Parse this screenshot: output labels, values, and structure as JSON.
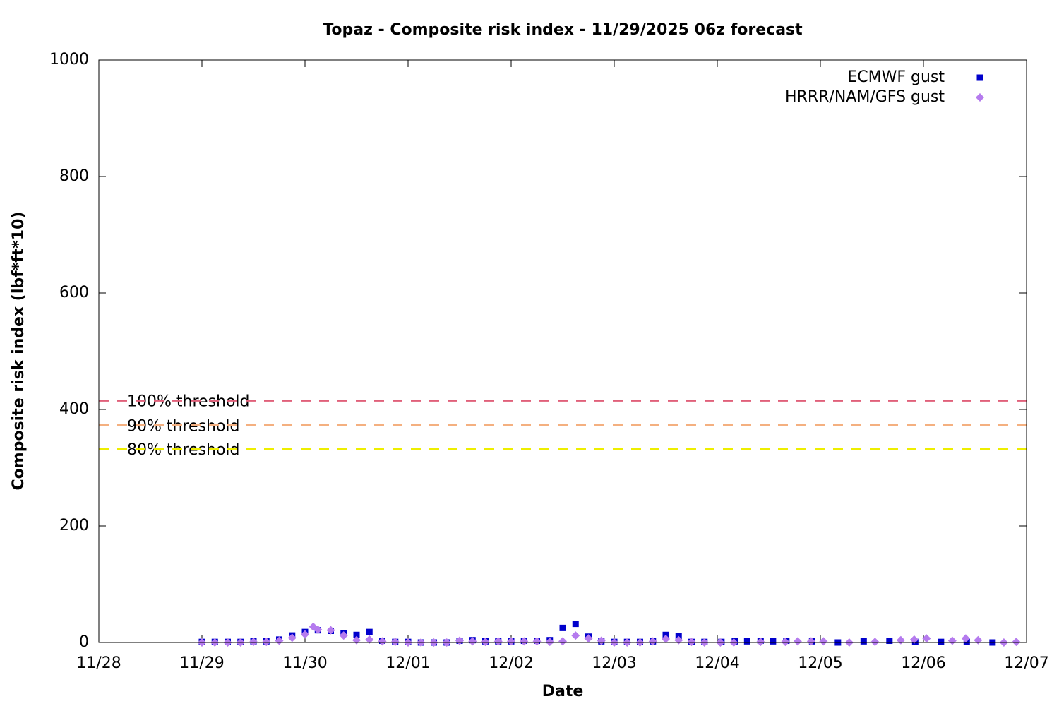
{
  "chart_data": {
    "type": "scatter",
    "title": "Topaz - Composite risk index - 11/29/2025 06z forecast",
    "x_label": "Date",
    "y_label": "Composite risk index (lbf*ft*10)",
    "xlim": [
      0,
      9
    ],
    "xticks": [
      {
        "value": 0,
        "label": "11/28"
      },
      {
        "value": 1,
        "label": "11/29"
      },
      {
        "value": 2,
        "label": "11/30"
      },
      {
        "value": 3,
        "label": "12/01"
      },
      {
        "value": 4,
        "label": "12/02"
      },
      {
        "value": 5,
        "label": "12/03"
      },
      {
        "value": 6,
        "label": "12/04"
      },
      {
        "value": 7,
        "label": "12/05"
      },
      {
        "value": 8,
        "label": "12/06"
      },
      {
        "value": 9,
        "label": "12/07"
      }
    ],
    "ylim": [
      0,
      1000
    ],
    "yticks": [
      0,
      200,
      400,
      600,
      800,
      1000
    ],
    "legend": "top-right",
    "thresholds": [
      {
        "label": "100% threshold",
        "value": 415,
        "color": "#e0607a"
      },
      {
        "label": "90% threshold",
        "value": 373,
        "color": "#f4b080"
      },
      {
        "label": "80% threshold",
        "value": 332,
        "color": "#eeee00"
      }
    ],
    "series": [
      {
        "name": "ECMWF gust",
        "color": "#0000cc",
        "marker": "square",
        "x": [
          1.0,
          1.125,
          1.25,
          1.375,
          1.5,
          1.625,
          1.75,
          1.875,
          2.0,
          2.125,
          2.25,
          2.375,
          2.5,
          2.625,
          2.75,
          2.875,
          3.0,
          3.125,
          3.25,
          3.375,
          3.5,
          3.625,
          3.75,
          3.875,
          4.0,
          4.125,
          4.25,
          4.375,
          4.5,
          4.625,
          4.75,
          4.875,
          5.0,
          5.125,
          5.25,
          5.375,
          5.5,
          5.625,
          5.75,
          5.875,
          6.04,
          6.17,
          6.29,
          6.42,
          6.54,
          6.67,
          6.92,
          7.17,
          7.42,
          7.67,
          7.92,
          8.17,
          8.42,
          8.67
        ],
        "values": [
          1,
          1,
          1,
          1,
          2,
          2,
          5,
          12,
          18,
          21,
          20,
          16,
          13,
          18,
          3,
          1,
          1,
          0,
          0,
          0,
          3,
          4,
          2,
          2,
          2,
          3,
          3,
          4,
          25,
          32,
          10,
          2,
          1,
          1,
          1,
          2,
          13,
          11,
          1,
          1,
          1,
          2,
          2,
          3,
          2,
          3,
          2,
          0,
          2,
          3,
          1,
          1,
          1,
          0
        ]
      },
      {
        "name": "HRRR/NAM/GFS gust",
        "color": "#b57bee",
        "marker": "diamond",
        "x": [
          1.0,
          1.125,
          1.25,
          1.375,
          1.5,
          1.625,
          1.75,
          1.875,
          2.0,
          2.08,
          2.125,
          2.25,
          2.375,
          2.5,
          2.625,
          2.75,
          2.875,
          3.0,
          3.125,
          3.25,
          3.375,
          3.5,
          3.625,
          3.75,
          3.875,
          4.0,
          4.125,
          4.25,
          4.375,
          4.5,
          4.625,
          4.75,
          4.875,
          5.0,
          5.125,
          5.25,
          5.375,
          5.5,
          5.625,
          5.75,
          5.875,
          6.03,
          6.16,
          6.42,
          6.66,
          6.78,
          6.91,
          7.03,
          7.28,
          7.53,
          7.78,
          7.91,
          8.03,
          8.28,
          8.41,
          8.53,
          8.78,
          8.9
        ],
        "values": [
          0,
          0,
          0,
          0,
          1,
          1,
          3,
          8,
          14,
          27,
          22,
          21,
          12,
          4,
          5,
          2,
          1,
          0,
          0,
          0,
          0,
          3,
          2,
          1,
          2,
          2,
          2,
          2,
          1,
          2,
          12,
          7,
          3,
          0,
          0,
          0,
          2,
          6,
          4,
          1,
          0,
          0,
          0,
          1,
          1,
          2,
          2,
          2,
          0,
          1,
          4,
          5,
          7,
          3,
          7,
          4,
          0,
          1
        ]
      }
    ]
  }
}
